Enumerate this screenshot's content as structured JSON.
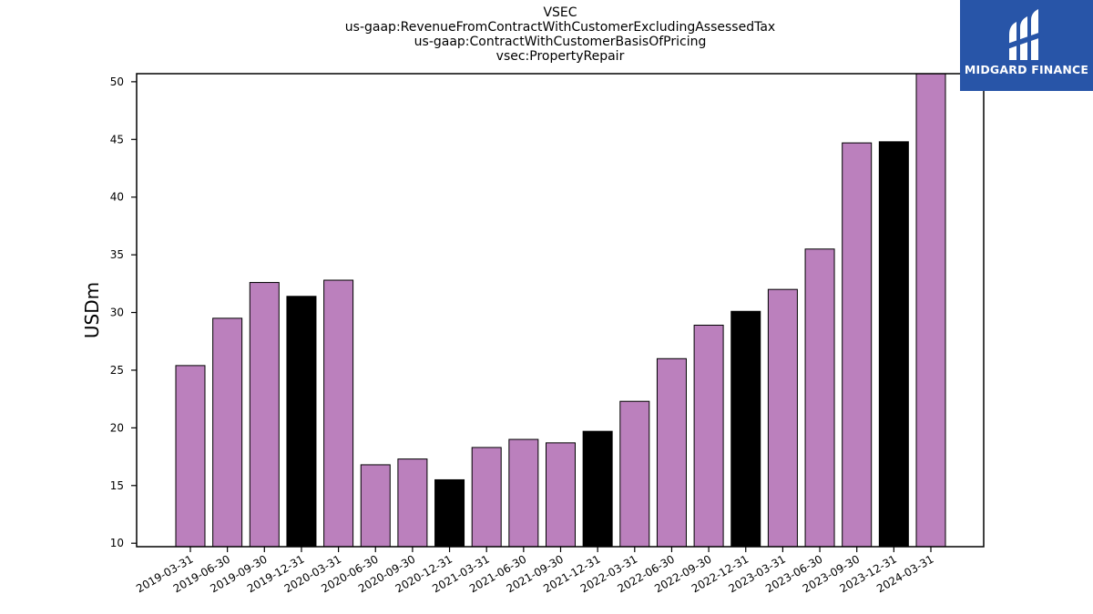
{
  "chart_data": {
    "type": "bar",
    "title_lines": [
      "VSEC",
      "us-gaap:RevenueFromContractWithCustomerExcludingAssessedTax",
      "us-gaap:ContractWithCustomerBasisOfPricing",
      "vsec:PropertyRepair"
    ],
    "xlabel": "",
    "ylabel": "USDm",
    "ylim": [
      9.7,
      50.7
    ],
    "yticks": [
      10,
      15,
      20,
      25,
      30,
      35,
      40,
      45,
      50
    ],
    "categories": [
      "2019-03-31",
      "2019-06-30",
      "2019-09-30",
      "2019-12-31",
      "2020-03-31",
      "2020-06-30",
      "2020-09-30",
      "2020-12-31",
      "2021-03-31",
      "2021-06-30",
      "2021-09-30",
      "2021-12-31",
      "2022-03-31",
      "2022-06-30",
      "2022-09-30",
      "2022-12-31",
      "2023-03-31",
      "2023-06-30",
      "2023-09-30",
      "2023-12-31",
      "2024-03-31"
    ],
    "values": [
      25.4,
      29.5,
      32.6,
      31.4,
      32.8,
      16.8,
      17.3,
      15.5,
      18.3,
      19.0,
      18.7,
      19.7,
      22.3,
      26.0,
      28.9,
      30.1,
      32.0,
      35.5,
      44.7,
      44.8,
      50.8
    ],
    "bar_kinds": [
      "q",
      "q",
      "q",
      "y",
      "q",
      "q",
      "q",
      "y",
      "q",
      "q",
      "q",
      "y",
      "q",
      "q",
      "q",
      "y",
      "q",
      "q",
      "q",
      "y",
      "q"
    ],
    "colors": {
      "quarter": "#bb80bd",
      "year_end": "#000000",
      "edge": "#000000"
    },
    "grid": false,
    "legend": "none"
  },
  "logo": {
    "text": "MIDGARD FINANCE",
    "background": "#2855a8"
  }
}
